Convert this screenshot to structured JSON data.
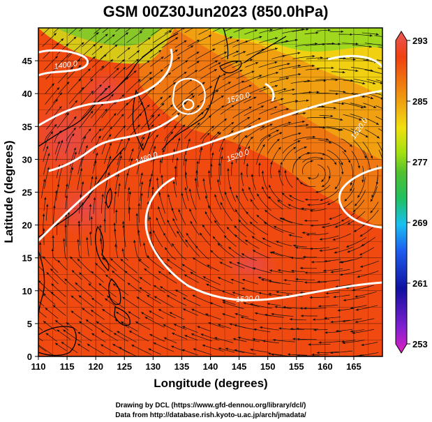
{
  "chart_data": {
    "type": "heatmap",
    "title": "GSM 00Z30Jun2023 (850.0hPa)",
    "xlabel": "Longitude (degrees)",
    "ylabel": "Latitude  (degrees)",
    "xlim": [
      110,
      170
    ],
    "ylim": [
      0,
      50
    ],
    "x_ticks": [
      "110",
      "115",
      "120",
      "125",
      "130",
      "135",
      "140",
      "145",
      "150",
      "155",
      "160",
      "165"
    ],
    "y_ticks": [
      "0",
      "5",
      "10",
      "15",
      "20",
      "25",
      "30",
      "35",
      "40",
      "45"
    ],
    "colorbar": {
      "ticks": [
        "253",
        "261",
        "269",
        "277",
        "285",
        "293"
      ],
      "range": [
        253,
        293
      ],
      "colors": [
        "#e020c0",
        "#8020d0",
        "#1010a0",
        "#1e5ff0",
        "#19c0f0",
        "#20c060",
        "#50c030",
        "#a0e010",
        "#f0e010",
        "#f0b010",
        "#f07810",
        "#f04010",
        "#e82020",
        "#e85858"
      ]
    },
    "contour_labels": [
      "1400.0",
      "1480.0",
      "1520.0",
      "1520.0",
      "1520.0",
      "1520.0"
    ],
    "overlays": [
      "streamlines",
      "coastlines",
      "grid"
    ],
    "credits": [
      "Drawing by DCL (https://www.gfd-dennou.org/library/dcl/)",
      "Data from http://database.rish.kyoto-u.ac.jp/arch/jmadata/"
    ]
  }
}
